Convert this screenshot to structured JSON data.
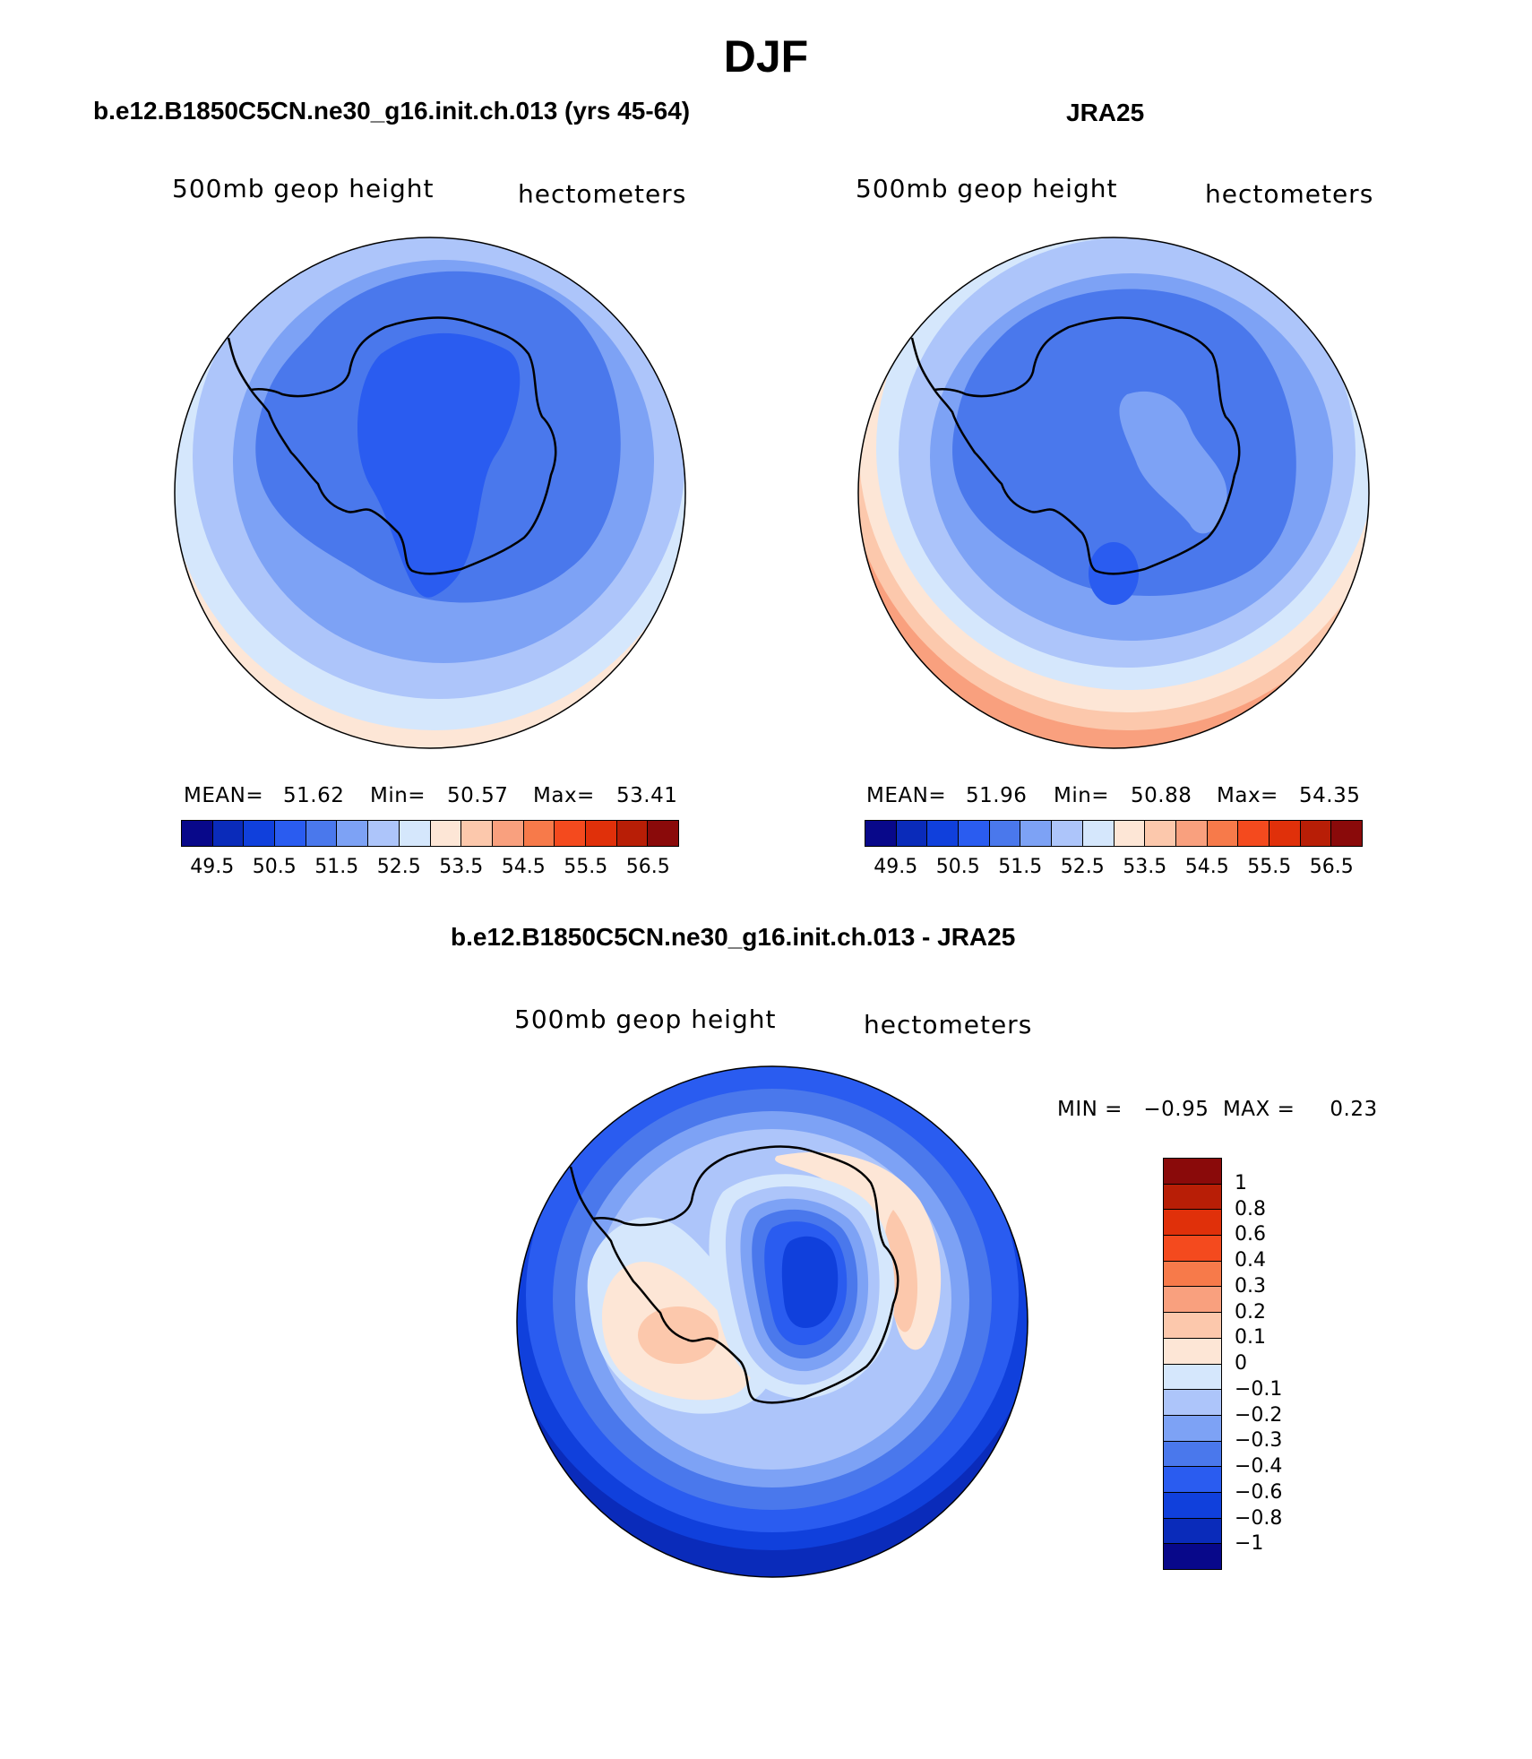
{
  "title": "DJF",
  "colors": {
    "abs": [
      "#08088a",
      "#0a2bba",
      "#1040dc",
      "#2a5cf0",
      "#4a78ec",
      "#7da2f5",
      "#adc5fa",
      "#d5e7fc",
      "#fde6d6",
      "#fcc8ac",
      "#f9a07e",
      "#f77a4a",
      "#f44a1e",
      "#e0300a",
      "#b81e06",
      "#8a0a0a"
    ],
    "diff": [
      "#08088a",
      "#0a2bba",
      "#1040dc",
      "#2a5cf0",
      "#4a78ec",
      "#7da2f5",
      "#adc5fa",
      "#d5e7fc",
      "#fde6d6",
      "#fcc8ac",
      "#f9a07e",
      "#f77a4a",
      "#f44a1e",
      "#e0300a",
      "#b81e06",
      "#8a0a0a"
    ]
  },
  "panels": {
    "left": {
      "title": "b.e12.B1850C5CN.ne30_g16.init.ch.013 (yrs 45-64)",
      "variable": "500mb geop height",
      "units": "hectometers",
      "mean_label": "MEAN=",
      "mean": "51.62",
      "min_label": "Min=",
      "min": "50.57",
      "max_label": "Max=",
      "max": "53.41",
      "levels": [
        50.8,
        51.2,
        51.6,
        52.0,
        52.4,
        52.8,
        53.2
      ]
    },
    "right": {
      "title": "JRA25",
      "variable": "500mb geop height",
      "units": "hectometers",
      "mean_label": "MEAN=",
      "mean": "51.96",
      "min_label": "Min=",
      "min": "50.88",
      "max_label": "Max=",
      "max": "54.35",
      "levels": [
        51.0,
        51.4,
        51.8,
        52.2,
        52.6,
        53.0,
        53.4,
        53.8,
        54.2
      ]
    },
    "diff": {
      "title": "b.e12.B1850C5CN.ne30_g16.init.ch.013 - JRA25",
      "variable": "500mb geop height",
      "units": "hectometers",
      "minmax_label": "MIN =   −0.95  MAX =     0.23",
      "min": "-0.95",
      "max": "0.23"
    }
  },
  "colorbar_abs": {
    "ticks": [
      "49.5",
      "50.5",
      "51.5",
      "52.5",
      "53.5",
      "54.5",
      "55.5",
      "56.5"
    ]
  },
  "colorbar_diff": {
    "ticks": [
      "1",
      "0.8",
      "0.6",
      "0.4",
      "0.3",
      "0.2",
      "0.1",
      "0",
      "−0.1",
      "−0.2",
      "−0.3",
      "−0.4",
      "−0.6",
      "−0.8",
      "−1"
    ]
  },
  "chart_data": [
    {
      "type": "heatmap",
      "title": "b.e12.B1850C5CN.ne30_g16.init.ch.013 (yrs 45-64)",
      "subtitle": "500mb geop height",
      "units": "hectometers",
      "projection": "south polar stereographic",
      "mean": 51.62,
      "min": 50.57,
      "max": 53.41,
      "colorbar_ticks": [
        49.5,
        50.5,
        51.5,
        52.5,
        53.5,
        54.5,
        55.5,
        56.5
      ],
      "range": [
        49.5,
        56.5
      ]
    },
    {
      "type": "heatmap",
      "title": "JRA25",
      "subtitle": "500mb geop height",
      "units": "hectometers",
      "projection": "south polar stereographic",
      "mean": 51.96,
      "min": 50.88,
      "max": 54.35,
      "colorbar_ticks": [
        49.5,
        50.5,
        51.5,
        52.5,
        53.5,
        54.5,
        55.5,
        56.5
      ],
      "range": [
        49.5,
        56.5
      ]
    },
    {
      "type": "heatmap",
      "title": "b.e12.B1850C5CN.ne30_g16.init.ch.013 - JRA25",
      "subtitle": "500mb geop height",
      "units": "hectometers",
      "projection": "south polar stereographic",
      "min": -0.95,
      "max": 0.23,
      "colorbar_levels": [
        1,
        0.8,
        0.6,
        0.4,
        0.3,
        0.2,
        0.1,
        0,
        -0.1,
        -0.2,
        -0.3,
        -0.4,
        -0.6,
        -0.8,
        -1
      ]
    }
  ]
}
